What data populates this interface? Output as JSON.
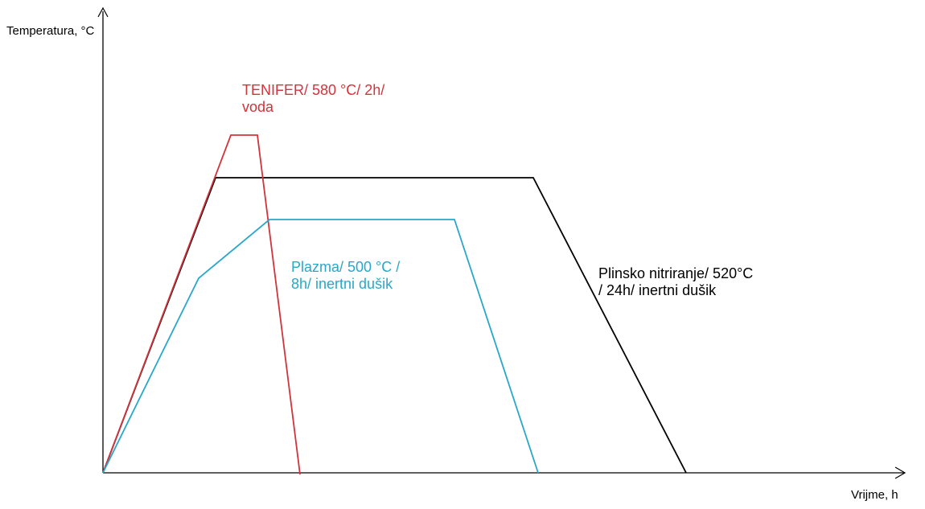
{
  "axes": {
    "y_label": "Temperatura, °C",
    "x_label": "Vrijme, h"
  },
  "colors": {
    "axis": "#000000",
    "tenifer": "#d0343c",
    "plazma": "#29a7c9",
    "plinsko": "#000000"
  },
  "curves": [
    {
      "id": "tenifer",
      "line1": "TENIFER/ 580 °C/ 2h/",
      "line2": "voda"
    },
    {
      "id": "plazma",
      "line1": "Plazma/ 500 °C /",
      "line2": "8h/ inertni dušik"
    },
    {
      "id": "plinsko",
      "line1": "Plinsko nitriranje/ 520°C",
      "line2": "/ 24h/ inertni dušik"
    }
  ]
}
